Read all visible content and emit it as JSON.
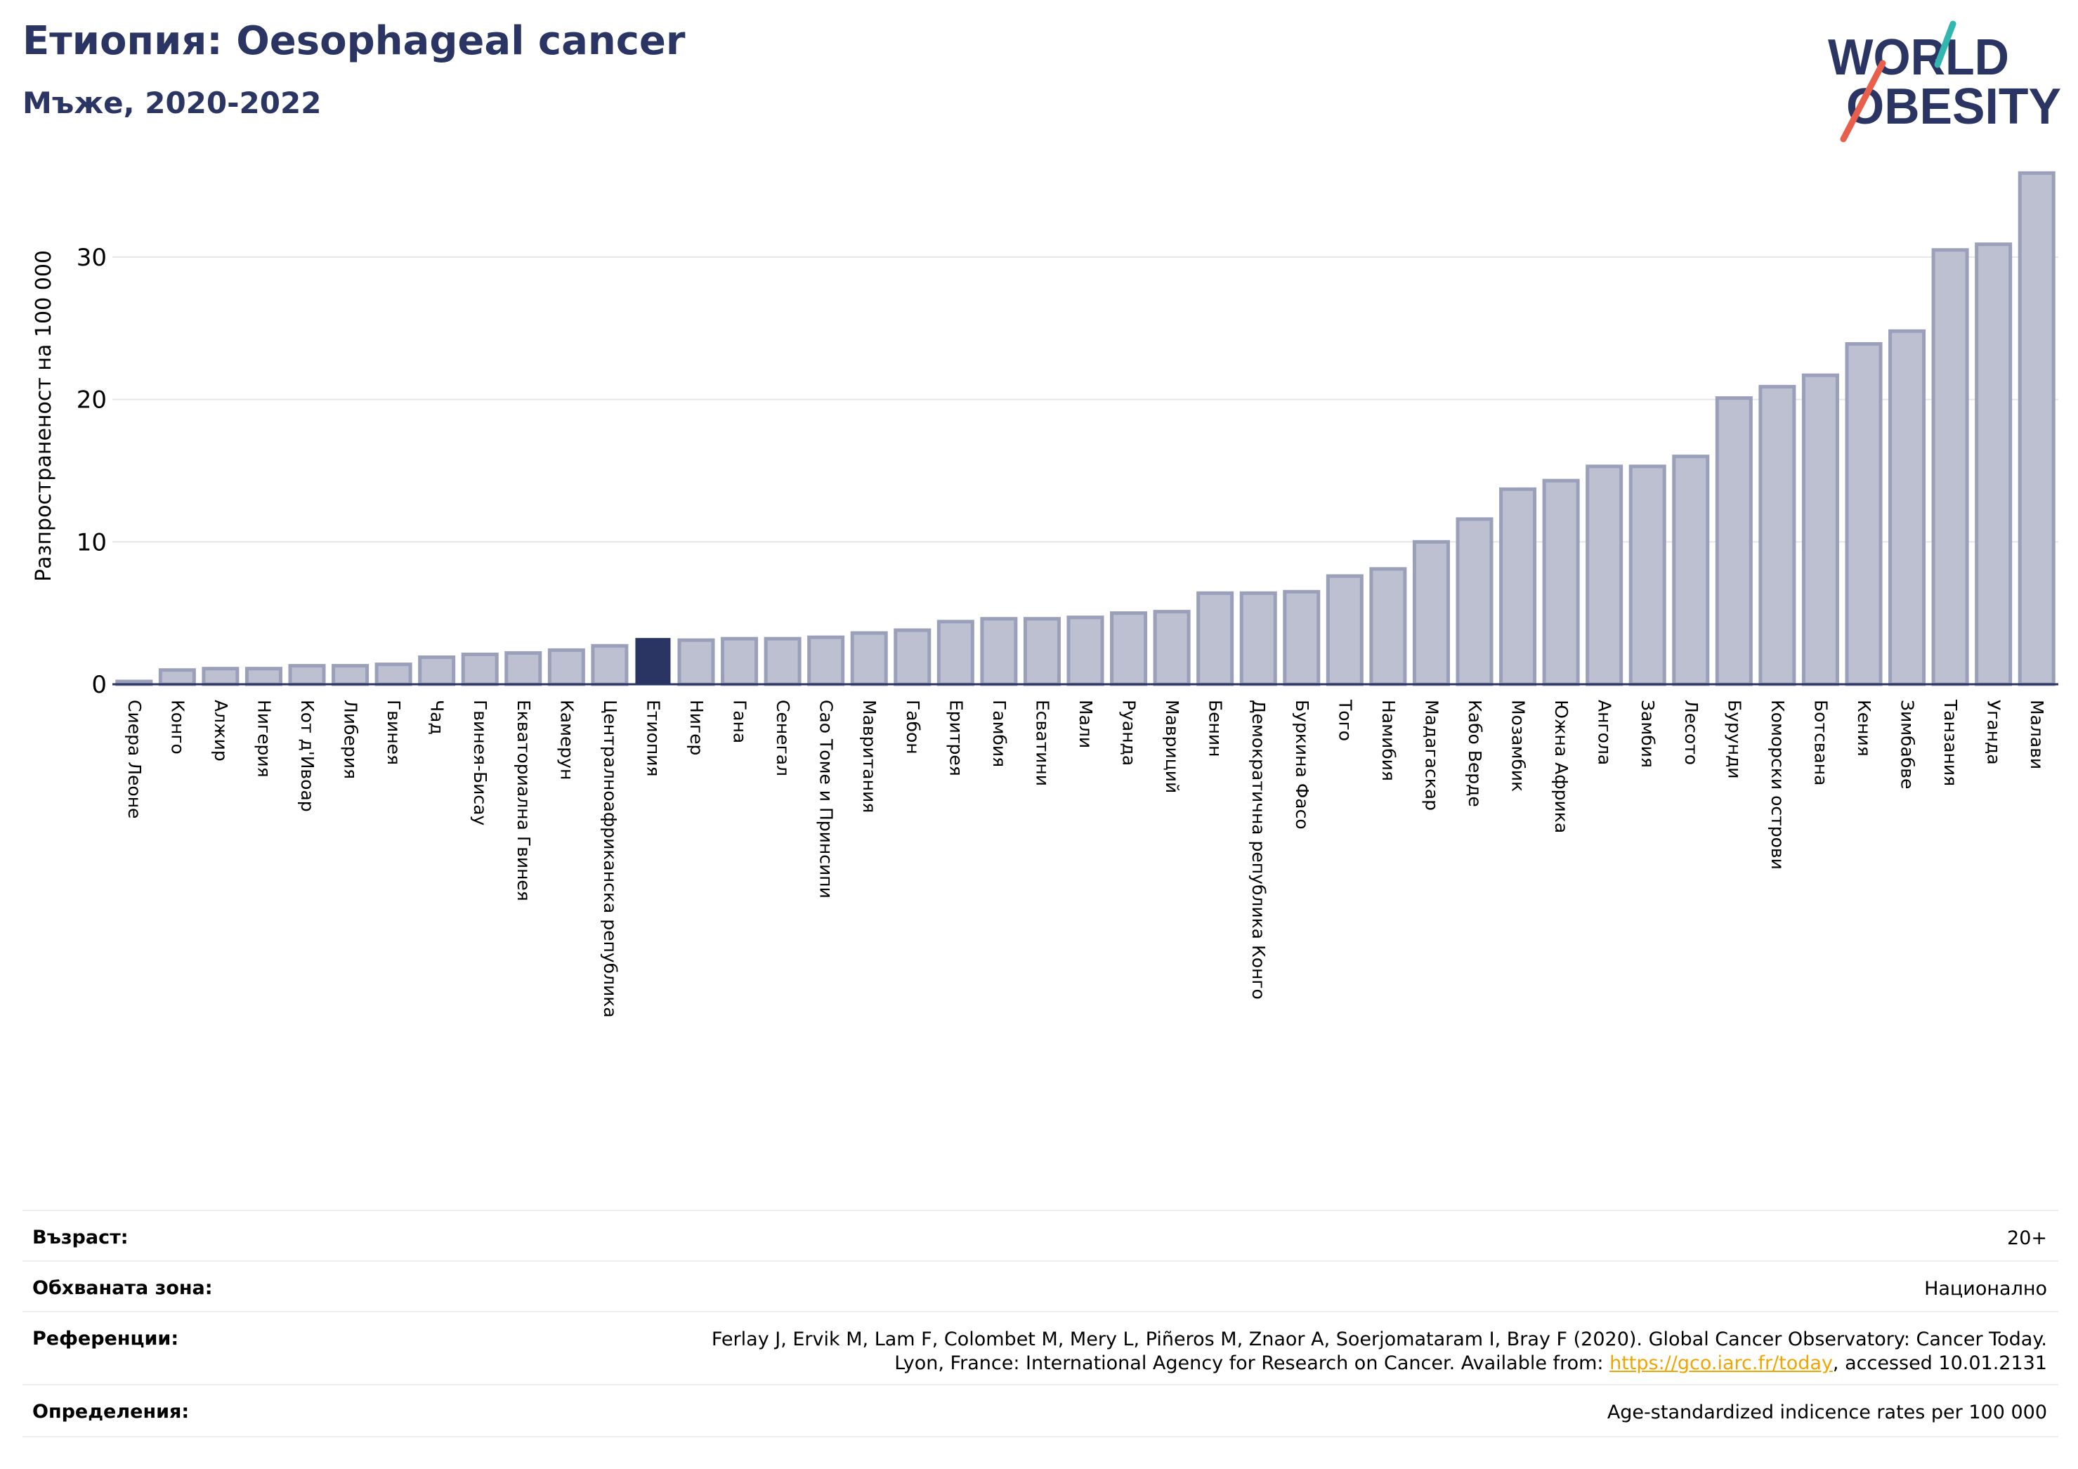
{
  "title": "Етиопия: Oesophageal cancer",
  "subtitle": "Мъже, 2020-2022",
  "logo": {
    "line1": "WORLD",
    "line2": "OBESITY",
    "icon": "world-obesity-logo"
  },
  "colors": {
    "bar_fill": "#bcc0d0",
    "bar_stroke": "#9a9fba",
    "highlight": "#2a3563",
    "grid": "#e6e6ea",
    "text_dark": "#2a3563",
    "link": "#f0a500"
  },
  "chart_data": {
    "type": "bar",
    "ylabel": "Разпространеност  на 100 000",
    "ylim": [
      0,
      36
    ],
    "yticks": [
      0,
      10,
      20,
      30
    ],
    "grid": true,
    "highlight": "Етиопия",
    "categories": [
      "Сиера Леоне",
      "Конго",
      "Алжир",
      "Нигерия",
      "Кот д'Ивоар",
      "Либерия",
      "Гвинея",
      "Чад",
      "Гвинея-Бисау",
      "Екваториална Гвинея",
      "Камерун",
      "Централноафриканска република",
      "Етиопия",
      "Нигер",
      "Гана",
      "Сенегал",
      "Сао Томе и Принсипи",
      "Мавритания",
      "Габон",
      "Еритрея",
      "Гамбия",
      "Есватини",
      "Мали",
      "Руанда",
      "Мавриций",
      "Бенин",
      "Демократична република Конго",
      "Буркина Фасо",
      "Того",
      "Намибия",
      "Мадагаскар",
      "Кабо Верде",
      "Мозамбик",
      "Южна Африка",
      "Ангола",
      "Замбия",
      "Лесото",
      "Бурунди",
      "Коморски острови",
      "Ботсвана",
      "Кения",
      "Зимбабве",
      "Танзания",
      "Уганда",
      "Малави"
    ],
    "values": [
      0.2,
      1.0,
      1.1,
      1.1,
      1.3,
      1.3,
      1.4,
      1.9,
      2.1,
      2.2,
      2.4,
      2.7,
      3.2,
      3.1,
      3.2,
      3.2,
      3.3,
      3.6,
      3.8,
      4.4,
      4.6,
      4.6,
      4.7,
      5.0,
      5.1,
      6.4,
      6.4,
      6.5,
      7.6,
      8.1,
      10.0,
      11.6,
      13.7,
      14.3,
      15.3,
      15.3,
      16.0,
      20.1,
      20.9,
      21.7,
      23.9,
      24.8,
      30.5,
      30.9,
      35.9
    ]
  },
  "info": [
    {
      "label": "Възраст:",
      "value": "20+"
    },
    {
      "label": "Обхваната зона:",
      "value": "Национално"
    },
    {
      "label": "Референции:",
      "value_line1": "Ferlay J, Ervik M, Lam F, Colombet M, Mery L, Piñeros M, Znaor A, Soerjomataram I, Bray F (2020). Global Cancer Observatory: Cancer Today.",
      "value_line2_pre": "Lyon, France: International Agency for Research on Cancer. Available from: ",
      "link": "https://gco.iarc.fr/today",
      "value_line2_post": ", accessed 10.01.2131"
    },
    {
      "label": "Определения:",
      "value": "Age-standardized indicence rates per 100 000"
    }
  ]
}
